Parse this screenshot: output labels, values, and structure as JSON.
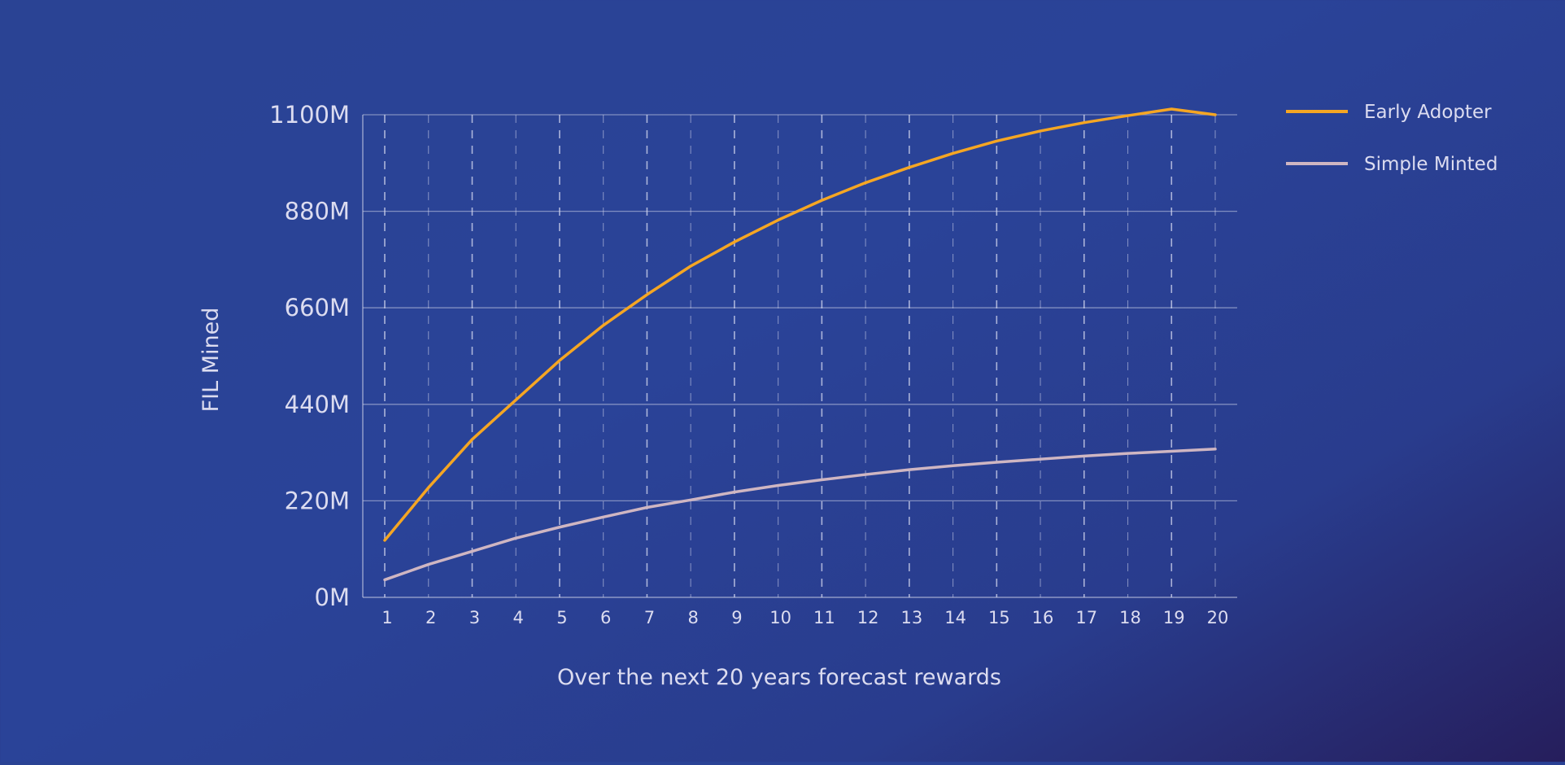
{
  "chart_data": {
    "type": "line",
    "title": "",
    "xlabel": "Over the next 20 years forecast rewards",
    "ylabel": "FIL Mined",
    "categories": [
      "1",
      "2",
      "3",
      "4",
      "5",
      "6",
      "7",
      "8",
      "9",
      "10",
      "11",
      "12",
      "13",
      "14",
      "15",
      "16",
      "17",
      "18",
      "19",
      "20"
    ],
    "y_ticks": [
      "0M",
      "220M",
      "440M",
      "660M",
      "880M",
      "1100M"
    ],
    "ylim": [
      0,
      1100
    ],
    "grid": true,
    "legend_position": "top-right",
    "series": [
      {
        "name": "Early Adopter",
        "color": "#f5a623",
        "values": [
          130,
          250,
          360,
          450,
          540,
          620,
          690,
          755,
          810,
          860,
          905,
          945,
          980,
          1012,
          1040,
          1063,
          1082,
          1098,
          1113,
          1100
        ]
      },
      {
        "name": "Simple Minted",
        "color": "#cfb6c2",
        "values": [
          40,
          75,
          105,
          135,
          160,
          183,
          205,
          222,
          240,
          255,
          268,
          280,
          291,
          300,
          308,
          315,
          322,
          328,
          333,
          338
        ]
      }
    ]
  }
}
